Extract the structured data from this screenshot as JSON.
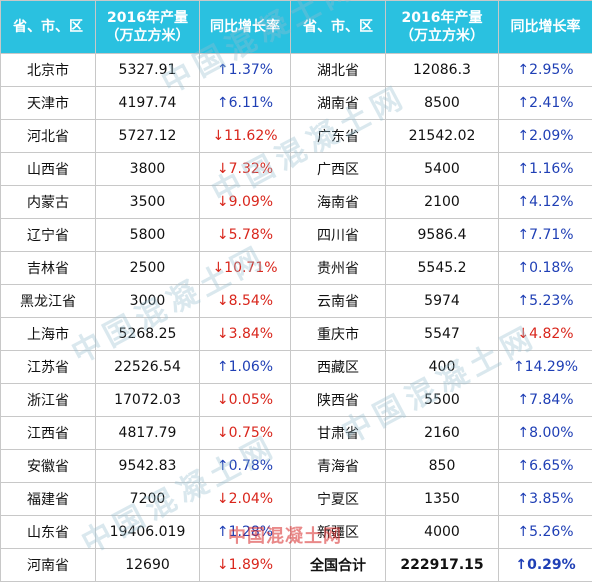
{
  "header": {
    "region_label": "省、市、区",
    "output_line1": "2016年产量",
    "output_line2": "（万立方米）",
    "growth_label": "同比增长率"
  },
  "left_rows": [
    {
      "region": "北京市",
      "output": "5327.91",
      "dir": "up",
      "arrow": "↑",
      "rate": "1.37%"
    },
    {
      "region": "天津市",
      "output": "4197.74",
      "dir": "up",
      "arrow": "↑",
      "rate": "6.11%"
    },
    {
      "region": "河北省",
      "output": "5727.12",
      "dir": "down",
      "arrow": "↓",
      "rate": "11.62%"
    },
    {
      "region": "山西省",
      "output": "3800",
      "dir": "down",
      "arrow": "↓",
      "rate": "7.32%"
    },
    {
      "region": "内蒙古",
      "output": "3500",
      "dir": "down",
      "arrow": "↓",
      "rate": "9.09%"
    },
    {
      "region": "辽宁省",
      "output": "5800",
      "dir": "down",
      "arrow": "↓",
      "rate": "5.78%"
    },
    {
      "region": "吉林省",
      "output": "2500",
      "dir": "down",
      "arrow": "↓",
      "rate": "10.71%"
    },
    {
      "region": "黑龙江省",
      "output": "3000",
      "dir": "down",
      "arrow": "↓",
      "rate": "8.54%"
    },
    {
      "region": "上海市",
      "output": "5268.25",
      "dir": "down",
      "arrow": "↓",
      "rate": "3.84%"
    },
    {
      "region": "江苏省",
      "output": "22526.54",
      "dir": "up",
      "arrow": "↑",
      "rate": "1.06%"
    },
    {
      "region": "浙江省",
      "output": "17072.03",
      "dir": "down",
      "arrow": "↓",
      "rate": "0.05%"
    },
    {
      "region": "江西省",
      "output": "4817.79",
      "dir": "down",
      "arrow": "↓",
      "rate": "0.75%"
    },
    {
      "region": "安徽省",
      "output": "9542.83",
      "dir": "up",
      "arrow": "↑",
      "rate": "0.78%"
    },
    {
      "region": "福建省",
      "output": "7200",
      "dir": "down",
      "arrow": "↓",
      "rate": "2.04%"
    },
    {
      "region": "山东省",
      "output": "19406.019",
      "dir": "up",
      "arrow": "↑",
      "rate": "1.28%"
    },
    {
      "region": "河南省",
      "output": "12690",
      "dir": "down",
      "arrow": "↓",
      "rate": "1.89%"
    }
  ],
  "right_rows": [
    {
      "region": "湖北省",
      "output": "12086.3",
      "dir": "up",
      "arrow": "↑",
      "rate": "2.95%"
    },
    {
      "region": "湖南省",
      "output": "8500",
      "dir": "up",
      "arrow": "↑",
      "rate": "2.41%"
    },
    {
      "region": "广东省",
      "output": "21542.02",
      "dir": "up",
      "arrow": "↑",
      "rate": "2.09%"
    },
    {
      "region": "广西区",
      "output": "5400",
      "dir": "up",
      "arrow": "↑",
      "rate": "1.16%"
    },
    {
      "region": "海南省",
      "output": "2100",
      "dir": "up",
      "arrow": "↑",
      "rate": "4.12%"
    },
    {
      "region": "四川省",
      "output": "9586.4",
      "dir": "up",
      "arrow": "↑",
      "rate": "7.71%"
    },
    {
      "region": "贵州省",
      "output": "5545.2",
      "dir": "up",
      "arrow": "↑",
      "rate": "0.18%"
    },
    {
      "region": "云南省",
      "output": "5974",
      "dir": "up",
      "arrow": "↑",
      "rate": "5.23%"
    },
    {
      "region": "重庆市",
      "output": "5547",
      "dir": "down",
      "arrow": "↓",
      "rate": "4.82%"
    },
    {
      "region": "西藏区",
      "output": "400",
      "dir": "up",
      "arrow": "↑",
      "rate": "14.29%"
    },
    {
      "region": "陕西省",
      "output": "5500",
      "dir": "up",
      "arrow": "↑",
      "rate": "7.84%"
    },
    {
      "region": "甘肃省",
      "output": "2160",
      "dir": "up",
      "arrow": "↑",
      "rate": "8.00%"
    },
    {
      "region": "青海省",
      "output": "850",
      "dir": "up",
      "arrow": "↑",
      "rate": "6.65%"
    },
    {
      "region": "宁夏区",
      "output": "1350",
      "dir": "up",
      "arrow": "↑",
      "rate": "3.85%"
    },
    {
      "region": "新疆区",
      "output": "4000",
      "dir": "up",
      "arrow": "↑",
      "rate": "5.26%"
    },
    {
      "region": "全国合计",
      "output": "222917.15",
      "dir": "up",
      "arrow": "↑",
      "rate": "0.29%",
      "total": true
    }
  ],
  "watermark": "中国混凝土网",
  "colors": {
    "header_bg": "#2ac1e0",
    "up": "#1f3fb5",
    "down": "#d9261c"
  }
}
